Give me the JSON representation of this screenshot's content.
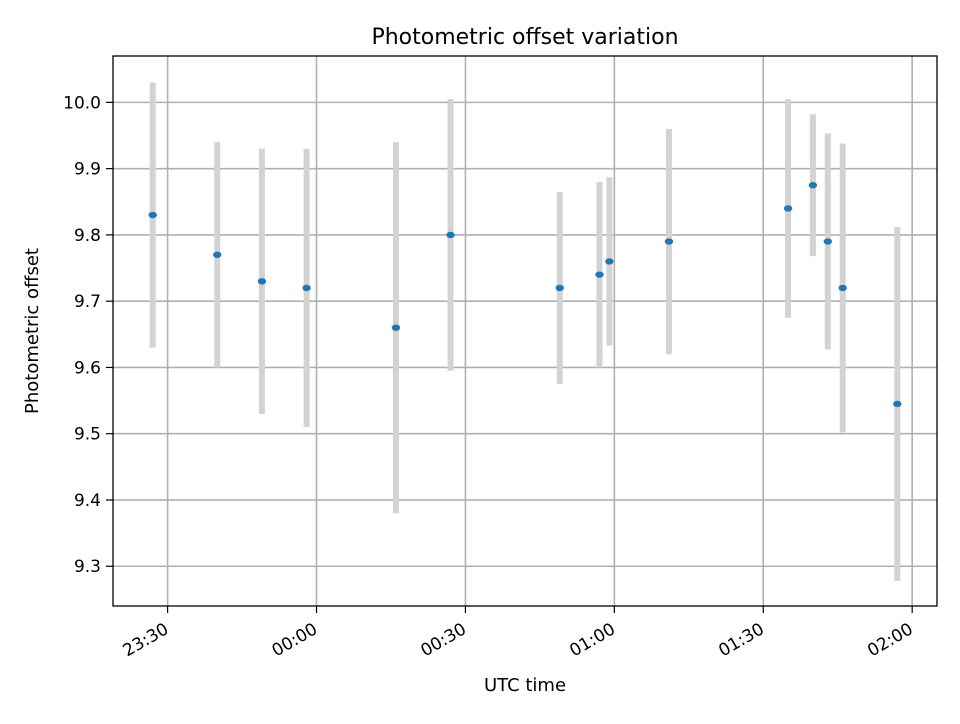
{
  "chart_data": {
    "type": "scatter",
    "title": "Photometric offset variation",
    "xlabel": "UTC time",
    "ylabel": "Photometric offset",
    "x_ticks": [
      "23:30",
      "00:00",
      "00:30",
      "01:00",
      "01:30",
      "02:00"
    ],
    "y_ticks": [
      "9.3",
      "9.4",
      "9.5",
      "9.6",
      "9.7",
      "9.8",
      "9.9",
      "10.0"
    ],
    "y_tick_values": [
      9.3,
      9.4,
      9.5,
      9.6,
      9.7,
      9.8,
      9.9,
      10.0
    ],
    "xlim": [
      "23:19",
      "02:05"
    ],
    "ylim": [
      9.24,
      10.07
    ],
    "grid": true,
    "points": [
      {
        "x": "23:27",
        "y": 9.83,
        "err": 0.2
      },
      {
        "x": "23:40",
        "y": 9.77,
        "err": 0.17
      },
      {
        "x": "23:49",
        "y": 9.73,
        "err": 0.2
      },
      {
        "x": "23:58",
        "y": 9.72,
        "err": 0.21
      },
      {
        "x": "00:16",
        "y": 9.66,
        "err": 0.28
      },
      {
        "x": "00:27",
        "y": 9.8,
        "err": 0.205
      },
      {
        "x": "00:49",
        "y": 9.72,
        "err": 0.145
      },
      {
        "x": "00:57",
        "y": 9.74,
        "err": 0.14
      },
      {
        "x": "00:59",
        "y": 9.76,
        "err": 0.127
      },
      {
        "x": "01:11",
        "y": 9.79,
        "err": 0.17
      },
      {
        "x": "01:35",
        "y": 9.84,
        "err": 0.165
      },
      {
        "x": "01:40",
        "y": 9.875,
        "err": 0.107
      },
      {
        "x": "01:43",
        "y": 9.79,
        "err": 0.163
      },
      {
        "x": "01:46",
        "y": 9.72,
        "err": 0.218
      },
      {
        "x": "01:57",
        "y": 9.545,
        "err": 0.267
      }
    ],
    "colors": {
      "point": "#1f77b4",
      "errorbar": "#d3d3d3",
      "grid": "#b0b0b0",
      "axes": "#000000"
    }
  }
}
